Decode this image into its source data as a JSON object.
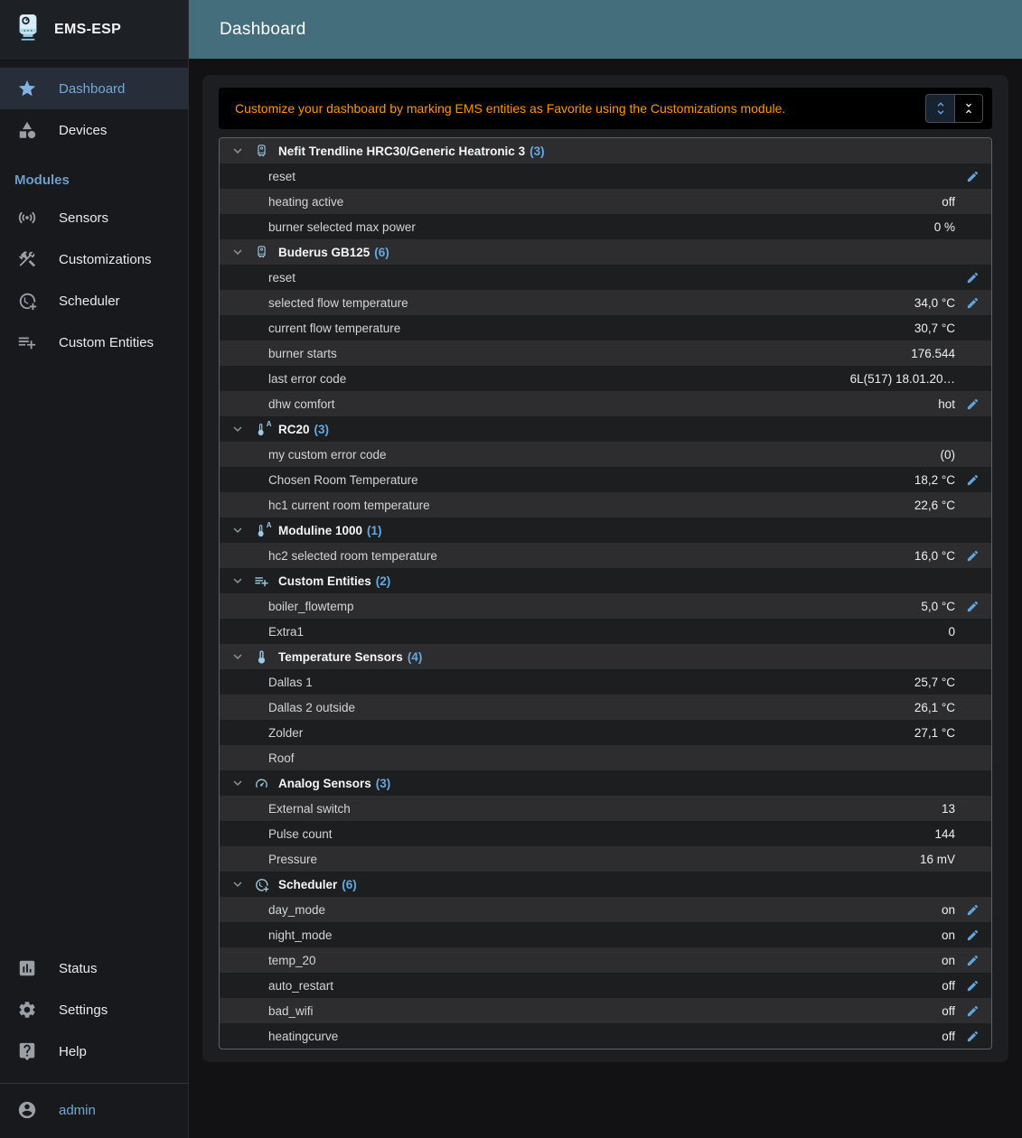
{
  "sidebar": {
    "app_name": "EMS-ESP",
    "nav_top": [
      {
        "label": "Dashboard",
        "icon": "star-icon",
        "active": true
      },
      {
        "label": "Devices",
        "icon": "category-icon",
        "active": false
      }
    ],
    "modules_label": "Modules",
    "modules": [
      {
        "label": "Sensors",
        "icon": "sensors-icon"
      },
      {
        "label": "Customizations",
        "icon": "tools-icon"
      },
      {
        "label": "Scheduler",
        "icon": "clock-plus-icon"
      },
      {
        "label": "Custom Entities",
        "icon": "playlist-add-icon"
      }
    ],
    "nav_bottom": [
      {
        "label": "Status",
        "icon": "chart-icon"
      },
      {
        "label": "Settings",
        "icon": "gear-icon"
      },
      {
        "label": "Help",
        "icon": "help-icon"
      }
    ],
    "user": {
      "label": "admin",
      "icon": "account-icon"
    }
  },
  "header": {
    "title": "Dashboard"
  },
  "notice": {
    "text": "Customize your dashboard by marking EMS entities as Favorite using the Customizations module.",
    "expand_all_icon": "unfold-more-icon",
    "collapse_all_icon": "unfold-less-icon"
  },
  "grid": {
    "sections": [
      {
        "name": "Nefit Trendline HRC30/Generic Heatronic 3",
        "count": 3,
        "icon": "boiler-icon",
        "rows": [
          {
            "name": "reset",
            "value": "",
            "editable": true
          },
          {
            "name": "heating active",
            "value": "off",
            "editable": false
          },
          {
            "name": "burner selected max power",
            "value": "0 %",
            "editable": false
          }
        ]
      },
      {
        "name": "Buderus GB125",
        "count": 6,
        "icon": "boiler-icon",
        "rows": [
          {
            "name": "reset",
            "value": "",
            "editable": true
          },
          {
            "name": "selected flow temperature",
            "value": "34,0 °C",
            "editable": true
          },
          {
            "name": "current flow temperature",
            "value": "30,7 °C",
            "editable": false
          },
          {
            "name": "burner starts",
            "value": "176.544",
            "editable": false
          },
          {
            "name": "last error code",
            "value": "6L(517) 18.01.20…",
            "editable": false
          },
          {
            "name": "dhw comfort",
            "value": "hot",
            "editable": true
          }
        ]
      },
      {
        "name": "RC20",
        "count": 3,
        "icon": "thermostat-icon",
        "rows": [
          {
            "name": "my custom error code",
            "value": "(0)",
            "editable": false
          },
          {
            "name": "Chosen Room Temperature",
            "value": "18,2 °C",
            "editable": true
          },
          {
            "name": "hc1 current room temperature",
            "value": "22,6 °C",
            "editable": false
          }
        ]
      },
      {
        "name": "Moduline 1000",
        "count": 1,
        "icon": "thermostat-icon",
        "rows": [
          {
            "name": "hc2 selected room temperature",
            "value": "16,0 °C",
            "editable": true
          }
        ]
      },
      {
        "name": "Custom Entities",
        "count": 2,
        "icon": "playlist-add-icon",
        "rows": [
          {
            "name": "boiler_flowtemp",
            "value": "5,0 °C",
            "editable": true
          },
          {
            "name": "Extra1",
            "value": "0",
            "editable": false
          }
        ]
      },
      {
        "name": "Temperature Sensors",
        "count": 4,
        "icon": "thermometer-icon",
        "rows": [
          {
            "name": "Dallas 1",
            "value": "25,7 °C",
            "editable": false
          },
          {
            "name": "Dallas 2 outside",
            "value": "26,1 °C",
            "editable": false
          },
          {
            "name": "Zolder",
            "value": "27,1 °C",
            "editable": false
          },
          {
            "name": "Roof",
            "value": "",
            "editable": false
          }
        ]
      },
      {
        "name": "Analog Sensors",
        "count": 3,
        "icon": "gauge-icon",
        "rows": [
          {
            "name": "External switch",
            "value": "13",
            "editable": false
          },
          {
            "name": "Pulse count",
            "value": "144",
            "editable": false
          },
          {
            "name": "Pressure",
            "value": "16 mV",
            "editable": false
          }
        ]
      },
      {
        "name": "Scheduler",
        "count": 6,
        "icon": "clock-plus-icon",
        "rows": [
          {
            "name": "day_mode",
            "value": "on",
            "editable": true
          },
          {
            "name": "night_mode",
            "value": "on",
            "editable": true
          },
          {
            "name": "temp_20",
            "value": "on",
            "editable": true
          },
          {
            "name": "auto_restart",
            "value": "off",
            "editable": true
          },
          {
            "name": "bad_wifi",
            "value": "off",
            "editable": true
          },
          {
            "name": "heatingcurve",
            "value": "off",
            "editable": true
          }
        ]
      }
    ]
  },
  "colors": {
    "appbar_teal": "#456e7d",
    "warning_orange": "#ff9800",
    "accent_blue": "#64a9e0",
    "row_stripe": "#2d2d2f",
    "paper": "#1d1e21"
  }
}
